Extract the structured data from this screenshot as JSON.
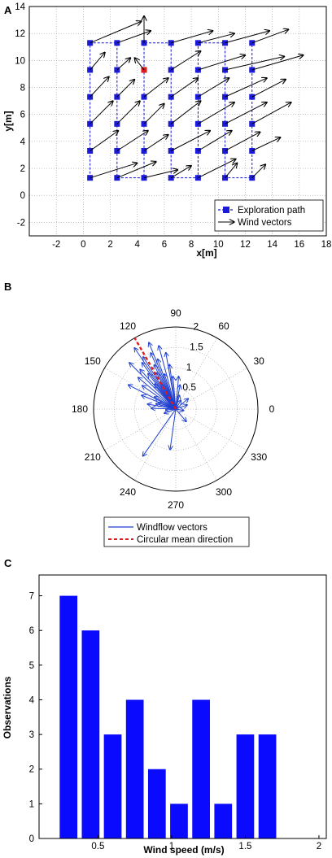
{
  "colors": {
    "path": "#1414d6",
    "path_marker": "#1a1ad8",
    "start_marker": "#e41a1a",
    "arrow": "#000000",
    "polar_vector": "#1f3fd0",
    "mean_line": "#e41a1a",
    "bar": "#0a0aff",
    "grid": "#9a9a9a"
  },
  "panels": {
    "a": {
      "letter": "A"
    },
    "b": {
      "letter": "B"
    },
    "c": {
      "letter": "C"
    }
  },
  "chart_data": [
    {
      "type": "scatter",
      "xlabel": "x[m]",
      "ylabel": "y[m]",
      "xlim": [
        -4,
        18
      ],
      "ylim": [
        -3,
        14
      ],
      "xticks": [
        -2,
        0,
        2,
        4,
        6,
        8,
        10,
        12,
        14,
        16,
        18
      ],
      "yticks": [
        -2,
        0,
        2,
        4,
        6,
        8,
        10,
        12,
        14
      ],
      "grid": true,
      "legend": {
        "placement": "bottom-right",
        "entries": [
          "Exploration path",
          "Wind vectors"
        ]
      },
      "exploration_path": [
        [
          0.5,
          1.3
        ],
        [
          0.5,
          3.3
        ],
        [
          0.5,
          5.3
        ],
        [
          0.5,
          7.3
        ],
        [
          0.5,
          9.3
        ],
        [
          0.5,
          11.3
        ],
        [
          2.5,
          11.3
        ],
        [
          2.5,
          9.3
        ],
        [
          2.5,
          7.3
        ],
        [
          2.5,
          5.3
        ],
        [
          2.5,
          3.3
        ],
        [
          2.5,
          1.3
        ],
        [
          4.5,
          1.3
        ],
        [
          4.5,
          3.3
        ],
        [
          4.5,
          5.3
        ],
        [
          4.5,
          7.3
        ],
        [
          4.5,
          9.3
        ],
        [
          4.5,
          11.3
        ],
        [
          6.5,
          11.3
        ],
        [
          6.5,
          9.3
        ],
        [
          6.5,
          7.3
        ],
        [
          6.5,
          5.3
        ],
        [
          6.5,
          3.3
        ],
        [
          6.5,
          1.3
        ],
        [
          8.5,
          1.3
        ],
        [
          8.5,
          3.3
        ],
        [
          8.5,
          5.3
        ],
        [
          8.5,
          7.3
        ],
        [
          8.5,
          9.3
        ],
        [
          8.5,
          11.3
        ],
        [
          10.5,
          11.3
        ],
        [
          10.5,
          9.3
        ],
        [
          10.5,
          7.3
        ],
        [
          10.5,
          5.3
        ],
        [
          10.5,
          3.3
        ],
        [
          10.5,
          1.3
        ],
        [
          12.5,
          1.3
        ],
        [
          12.5,
          3.3
        ],
        [
          12.5,
          5.3
        ],
        [
          12.5,
          7.3
        ],
        [
          12.5,
          9.3
        ],
        [
          12.5,
          11.3
        ]
      ],
      "highlighted_point": [
        4.5,
        9.3
      ],
      "wind_vectors": [
        [
          0.5,
          1.3,
          4.0,
          2.4
        ],
        [
          0.5,
          3.3,
          2.6,
          4.8
        ],
        [
          0.5,
          5.3,
          2.2,
          7.0
        ],
        [
          0.5,
          7.3,
          1.9,
          8.8
        ],
        [
          0.5,
          9.3,
          1.6,
          10.6
        ],
        [
          0.5,
          11.3,
          4.3,
          12.9
        ],
        [
          2.5,
          1.3,
          5.4,
          2.5
        ],
        [
          2.5,
          3.3,
          4.8,
          4.8
        ],
        [
          2.5,
          5.3,
          4.2,
          7.0
        ],
        [
          2.5,
          7.3,
          3.8,
          8.6
        ],
        [
          2.5,
          9.3,
          3.5,
          10.2
        ],
        [
          2.5,
          11.3,
          5.0,
          12.2
        ],
        [
          4.5,
          1.3,
          7.0,
          1.9
        ],
        [
          4.5,
          3.3,
          6.3,
          4.5
        ],
        [
          4.5,
          5.3,
          6.0,
          6.8
        ],
        [
          4.5,
          7.3,
          6.3,
          8.7
        ],
        [
          4.5,
          9.3,
          3.8,
          10.2
        ],
        [
          4.5,
          11.3,
          4.5,
          13.3
        ],
        [
          6.5,
          1.3,
          8.0,
          2.2
        ],
        [
          6.5,
          3.3,
          9.4,
          4.8
        ],
        [
          6.5,
          5.3,
          8.7,
          7.0
        ],
        [
          6.5,
          7.3,
          8.5,
          8.7
        ],
        [
          6.5,
          9.3,
          8.7,
          10.7
        ],
        [
          6.5,
          11.3,
          9.6,
          12.2
        ],
        [
          8.5,
          1.3,
          11.3,
          2.7
        ],
        [
          8.5,
          3.3,
          11.0,
          4.8
        ],
        [
          8.5,
          5.3,
          11.2,
          6.9
        ],
        [
          8.5,
          7.3,
          10.8,
          8.7
        ],
        [
          8.5,
          9.3,
          12.0,
          10.4
        ],
        [
          8.5,
          11.3,
          11.2,
          12.0
        ],
        [
          10.5,
          1.3,
          11.4,
          2.4
        ],
        [
          10.5,
          3.3,
          13.1,
          4.7
        ],
        [
          10.5,
          5.3,
          13.6,
          6.9
        ],
        [
          10.5,
          7.3,
          13.6,
          8.7
        ],
        [
          10.5,
          9.3,
          14.9,
          10.3
        ],
        [
          10.5,
          11.3,
          13.8,
          12.2
        ],
        [
          12.5,
          1.3,
          13.5,
          2.3
        ],
        [
          12.5,
          3.3,
          14.6,
          4.3
        ],
        [
          12.5,
          5.3,
          15.4,
          6.9
        ],
        [
          12.5,
          7.3,
          15.0,
          8.6
        ],
        [
          12.5,
          9.3,
          16.3,
          10.4
        ],
        [
          12.5,
          11.3,
          15.2,
          12.3
        ]
      ]
    },
    {
      "type": "polar",
      "angle_labels": [
        "0",
        "30",
        "60",
        "90",
        "120",
        "150",
        "180",
        "210",
        "240",
        "270",
        "300",
        "330"
      ],
      "radius_labels": [
        "0.5",
        "1",
        "1.5",
        "2"
      ],
      "rmax": 2,
      "grid": true,
      "legend": {
        "placement": "bottom",
        "entries": [
          "Windflow vectors",
          "Circular mean direction"
        ]
      },
      "circular_mean_direction_deg": 120,
      "windflow_vectors": [
        [
          0.8,
          95
        ],
        [
          1.1,
          98
        ],
        [
          1.4,
          100
        ],
        [
          1.6,
          105
        ],
        [
          0.9,
          108
        ],
        [
          1.3,
          110
        ],
        [
          1.75,
          112
        ],
        [
          1.5,
          114
        ],
        [
          1.2,
          116
        ],
        [
          1.0,
          118
        ],
        [
          0.7,
          120
        ],
        [
          1.5,
          122
        ],
        [
          1.8,
          124
        ],
        [
          1.4,
          126
        ],
        [
          1.1,
          128
        ],
        [
          0.8,
          130
        ],
        [
          1.3,
          132
        ],
        [
          1.6,
          135
        ],
        [
          1.2,
          140
        ],
        [
          1.0,
          145
        ],
        [
          0.6,
          150
        ],
        [
          1.3,
          153
        ],
        [
          0.9,
          158
        ],
        [
          0.45,
          160
        ],
        [
          0.5,
          165
        ],
        [
          0.7,
          170
        ],
        [
          0.6,
          178
        ],
        [
          0.25,
          185
        ],
        [
          0.3,
          20
        ],
        [
          0.4,
          40
        ],
        [
          0.25,
          60
        ],
        [
          0.35,
          75
        ],
        [
          0.6,
          80
        ],
        [
          0.8,
          85
        ],
        [
          0.3,
          200
        ],
        [
          1.4,
          235
        ],
        [
          1.0,
          262
        ],
        [
          0.4,
          310
        ],
        [
          0.2,
          350
        ]
      ]
    },
    {
      "type": "bar",
      "xlabel": "Wind speed (m/s)",
      "ylabel": "Observations",
      "xlim": [
        0.1,
        2.05
      ],
      "ylim": [
        0,
        7.6
      ],
      "xticks": [
        "0.5",
        "1",
        "1.5",
        "2"
      ],
      "yticks": [
        "0",
        "1",
        "2",
        "3",
        "4",
        "5",
        "6",
        "7"
      ],
      "categories": [
        0.3,
        0.45,
        0.6,
        0.75,
        0.9,
        1.05,
        1.2,
        1.35,
        1.5,
        1.65,
        1.8
      ],
      "values": [
        7,
        6,
        3,
        4,
        2,
        1,
        4,
        1,
        3,
        3,
        0
      ],
      "bar_width": 0.12
    }
  ]
}
